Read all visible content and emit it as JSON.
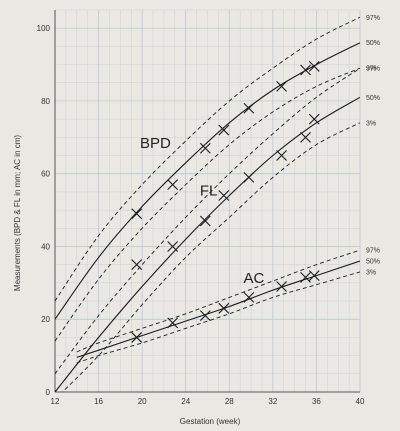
{
  "chart_data": {
    "type": "line",
    "title": "",
    "xlabel": "Gestation (week)",
    "ylabel": "Measurements (BPD & FL in mm; AC in cm)",
    "xlim": [
      12,
      40
    ],
    "ylim": [
      0,
      105
    ],
    "xticks": [
      12,
      16,
      20,
      24,
      28,
      32,
      36,
      40
    ],
    "yticks": [
      0,
      20,
      40,
      60,
      80,
      100
    ],
    "grid": true,
    "colors": {
      "background": "#e9e8e3",
      "grid": "#b9c3cf",
      "ink": "#1a1a1a"
    },
    "groups": [
      {
        "name": "BPD",
        "label_at": [
          19.8,
          67
        ],
        "x": [
          12,
          16,
          20,
          24,
          28,
          32,
          36,
          40
        ],
        "series": [
          {
            "name": "97%",
            "style": "dashed",
            "values": [
              25,
              43,
              57,
              69,
              80,
              89,
              97,
              103
            ]
          },
          {
            "name": "50%",
            "style": "solid",
            "values": [
              20,
              37,
              51,
              63,
              74,
              83,
              90,
              96
            ]
          },
          {
            "name": "3%",
            "style": "dashed",
            "values": [
              14,
              31,
              45,
              57,
              68,
              77,
              84,
              89
            ]
          }
        ],
        "measurements": [
          [
            19.5,
            49
          ],
          [
            22.8,
            57
          ],
          [
            25.8,
            67
          ],
          [
            27.5,
            72
          ],
          [
            29.8,
            78
          ],
          [
            32.8,
            84
          ],
          [
            35,
            88.5
          ],
          [
            35.8,
            89.5
          ]
        ]
      },
      {
        "name": "FL",
        "label_at": [
          25.3,
          54
        ],
        "x": [
          12,
          16,
          20,
          24,
          28,
          32,
          36,
          40
        ],
        "series": [
          {
            "name": "97%",
            "style": "dashed",
            "values": [
              5,
              21,
              35,
              48,
              60,
              71,
              81,
              89
            ]
          },
          {
            "name": "50%",
            "style": "solid",
            "values": [
              0,
              15,
              29,
              42,
              54,
              65,
              74,
              81
            ]
          },
          {
            "name": "3%",
            "style": "dashed",
            "values": [
              -2,
              10,
              24,
              37,
              48,
              59,
              68,
              74
            ]
          }
        ],
        "measurements": [
          [
            19.5,
            35
          ],
          [
            22.8,
            40
          ],
          [
            25.8,
            47
          ],
          [
            27.5,
            54
          ],
          [
            29.8,
            59
          ],
          [
            32.8,
            65
          ],
          [
            35,
            70
          ],
          [
            35.8,
            75
          ]
        ]
      },
      {
        "name": "AC",
        "label_at": [
          29.3,
          30
        ],
        "x": [
          14,
          16,
          20,
          24,
          28,
          32,
          36,
          40
        ],
        "series": [
          {
            "name": "97%",
            "style": "dashed",
            "values": [
              11,
              13.5,
              17.5,
              21.5,
              26,
              30.5,
              35,
              39
            ]
          },
          {
            "name": "50%",
            "style": "solid",
            "values": [
              9.5,
              11.5,
              15.5,
              19.5,
              23.5,
              28,
              32,
              36
            ]
          },
          {
            "name": "3%",
            "style": "dashed",
            "values": [
              8,
              10,
              13.5,
              17.5,
              21.5,
              26,
              29.5,
              33
            ]
          }
        ],
        "measurements": [
          [
            19.5,
            15
          ],
          [
            22.8,
            19
          ],
          [
            25.8,
            21
          ],
          [
            27.5,
            23
          ],
          [
            29.8,
            26
          ],
          [
            32.8,
            29
          ],
          [
            35,
            31.5
          ],
          [
            35.8,
            32
          ]
        ]
      }
    ]
  }
}
